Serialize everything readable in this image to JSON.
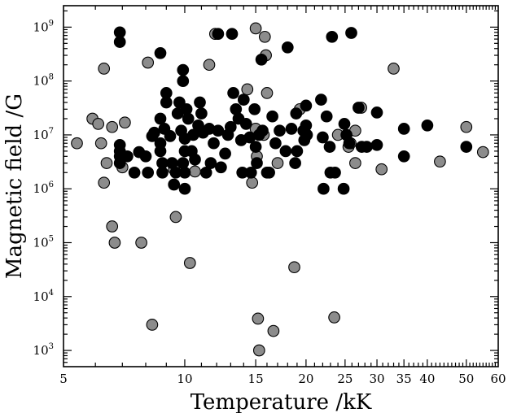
{
  "chart_data": {
    "type": "scatter",
    "title": "",
    "xlabel": "Temperature /kK",
    "ylabel": "Magnetic field /G",
    "x_scale": "log",
    "y_scale": "log",
    "xlim": [
      5,
      60
    ],
    "ylim": [
      500,
      2500000000
    ],
    "x_ticks": [
      5,
      10,
      15,
      20,
      25,
      30,
      35,
      40,
      50,
      60
    ],
    "y_tick_base": "10",
    "y_tick_exponents": [
      "3",
      "4",
      "5",
      "6",
      "7",
      "8",
      "9"
    ],
    "grid": false,
    "legend": "none",
    "colors": {
      "black_series": "#000000",
      "grey_series": "#8c8c8c",
      "marker_edge": "#000000"
    },
    "series": [
      {
        "color": "#000000",
        "points": [
          [
            6.9,
            800000000
          ],
          [
            6.9,
            530000000
          ],
          [
            8.7,
            330000000
          ],
          [
            12.1,
            750000000
          ],
          [
            13.1,
            750000000
          ],
          [
            18.0,
            420000000
          ],
          [
            23.2,
            660000000
          ],
          [
            25.9,
            780000000
          ],
          [
            9.9,
            160000000
          ],
          [
            9.9,
            100000000
          ],
          [
            15.5,
            250000000
          ],
          [
            6.9,
            6500000
          ],
          [
            6.9,
            5000000
          ],
          [
            6.9,
            4000000
          ],
          [
            6.9,
            3000000
          ],
          [
            7.2,
            4000000
          ],
          [
            7.5,
            2000000
          ],
          [
            7.7,
            4800000
          ],
          [
            8.0,
            4000000
          ],
          [
            8.1,
            2000000
          ],
          [
            8.3,
            9500000
          ],
          [
            8.4,
            11000000
          ],
          [
            8.7,
            20000000
          ],
          [
            8.7,
            7000000
          ],
          [
            8.7,
            5000000
          ],
          [
            8.8,
            2000000
          ],
          [
            8.8,
            3000000
          ],
          [
            8.9,
            13000000
          ],
          [
            9.0,
            60000000
          ],
          [
            9.0,
            40000000
          ],
          [
            9.2,
            9500000
          ],
          [
            9.3,
            3000000
          ],
          [
            9.4,
            1200000
          ],
          [
            9.5,
            2000000
          ],
          [
            9.6,
            25000000
          ],
          [
            9.7,
            40000000
          ],
          [
            9.8,
            12000000
          ],
          [
            9.9,
            3000000
          ],
          [
            10.0,
            1000000
          ],
          [
            10.0,
            2000000
          ],
          [
            10.0,
            5000000
          ],
          [
            10.0,
            8500000
          ],
          [
            10.1,
            30000000
          ],
          [
            10.2,
            20000000
          ],
          [
            10.4,
            5000000
          ],
          [
            10.5,
            10000000
          ],
          [
            10.6,
            3500000
          ],
          [
            10.8,
            15000000
          ],
          [
            10.9,
            40000000
          ],
          [
            11.0,
            25000000
          ],
          [
            11.1,
            11000000
          ],
          [
            11.3,
            2000000
          ],
          [
            11.5,
            13000000
          ],
          [
            11.6,
            3000000
          ],
          [
            11.8,
            7000000
          ],
          [
            12.1,
            12000000
          ],
          [
            12.3,
            2500000
          ],
          [
            12.6,
            4500000
          ],
          [
            12.8,
            10000000
          ],
          [
            13.0,
            14000000
          ],
          [
            13.2,
            60000000
          ],
          [
            13.4,
            30000000
          ],
          [
            13.6,
            20000000
          ],
          [
            13.8,
            8000000
          ],
          [
            13.9,
            2000000
          ],
          [
            14.0,
            45000000
          ],
          [
            14.2,
            16000000
          ],
          [
            14.5,
            9000000
          ],
          [
            14.6,
            2000000
          ],
          [
            14.9,
            30000000
          ],
          [
            15.0,
            6000000
          ],
          [
            15.1,
            3000000
          ],
          [
            15.3,
            10000000
          ],
          [
            15.6,
            12000000
          ],
          [
            16.0,
            2000000
          ],
          [
            16.2,
            2000000
          ],
          [
            16.5,
            22000000
          ],
          [
            16.8,
            7000000
          ],
          [
            17.2,
            12000000
          ],
          [
            17.8,
            5000000
          ],
          [
            18.4,
            13000000
          ],
          [
            18.8,
            3000000
          ],
          [
            18.9,
            25000000
          ],
          [
            19.0,
            5000000
          ],
          [
            19.7,
            12000000
          ],
          [
            19.8,
            8000000
          ],
          [
            20.0,
            15000000
          ],
          [
            20.0,
            35000000
          ],
          [
            20.1,
            10000000
          ],
          [
            21.8,
            45000000
          ],
          [
            22.0,
            9000000
          ],
          [
            22.1,
            1000000
          ],
          [
            22.5,
            22000000
          ],
          [
            22.9,
            6000000
          ],
          [
            23.0,
            2000000
          ],
          [
            23.6,
            2000000
          ],
          [
            24.8,
            1000000
          ],
          [
            24.9,
            16000000
          ],
          [
            25.2,
            10000000
          ],
          [
            25.6,
            7000000
          ],
          [
            27.0,
            32000000
          ],
          [
            27.5,
            6000000
          ],
          [
            28.3,
            6000000
          ],
          [
            30.0,
            6500000
          ],
          [
            30.0,
            26000000
          ],
          [
            35.0,
            13000000
          ],
          [
            35.0,
            4000000
          ],
          [
            40.0,
            15000000
          ],
          [
            50.0,
            6000000
          ]
        ]
      },
      {
        "color": "#8c8c8c",
        "points": [
          [
            5.4,
            7000000
          ],
          [
            5.9,
            20000000
          ],
          [
            6.1,
            16000000
          ],
          [
            6.2,
            7000000
          ],
          [
            6.3,
            170000000
          ],
          [
            6.3,
            1300000
          ],
          [
            6.4,
            3000000
          ],
          [
            6.6,
            14000000
          ],
          [
            6.6,
            200000
          ],
          [
            6.7,
            100000
          ],
          [
            7.0,
            2500000
          ],
          [
            7.1,
            17000000
          ],
          [
            7.8,
            100000
          ],
          [
            8.1,
            220000000
          ],
          [
            8.3,
            3000
          ],
          [
            9.4,
            2300000
          ],
          [
            9.5,
            300000
          ],
          [
            10.3,
            42000
          ],
          [
            10.6,
            2100000
          ],
          [
            11.5,
            200000000
          ],
          [
            11.9,
            750000000
          ],
          [
            14.3,
            70000000
          ],
          [
            14.7,
            1300000
          ],
          [
            15.0,
            950000000
          ],
          [
            15.0,
            13000000
          ],
          [
            15.1,
            4000000
          ],
          [
            15.2,
            3900
          ],
          [
            15.3,
            1000
          ],
          [
            15.7,
            10000000
          ],
          [
            15.8,
            660000000
          ],
          [
            15.9,
            300000000
          ],
          [
            16.0,
            60000000
          ],
          [
            16.6,
            2300
          ],
          [
            17.0,
            3000000
          ],
          [
            18.7,
            35000
          ],
          [
            19.3,
            30000000
          ],
          [
            23.5,
            4100
          ],
          [
            24.0,
            10000000
          ],
          [
            25.5,
            6000000
          ],
          [
            25.8,
            7000000
          ],
          [
            26.5,
            3000000
          ],
          [
            26.5,
            12000000
          ],
          [
            27.4,
            32000000
          ],
          [
            30.8,
            2300000
          ],
          [
            33.0,
            170000000
          ],
          [
            43.0,
            3200000
          ],
          [
            50.0,
            14000000
          ],
          [
            55.0,
            4800000
          ]
        ]
      }
    ]
  }
}
